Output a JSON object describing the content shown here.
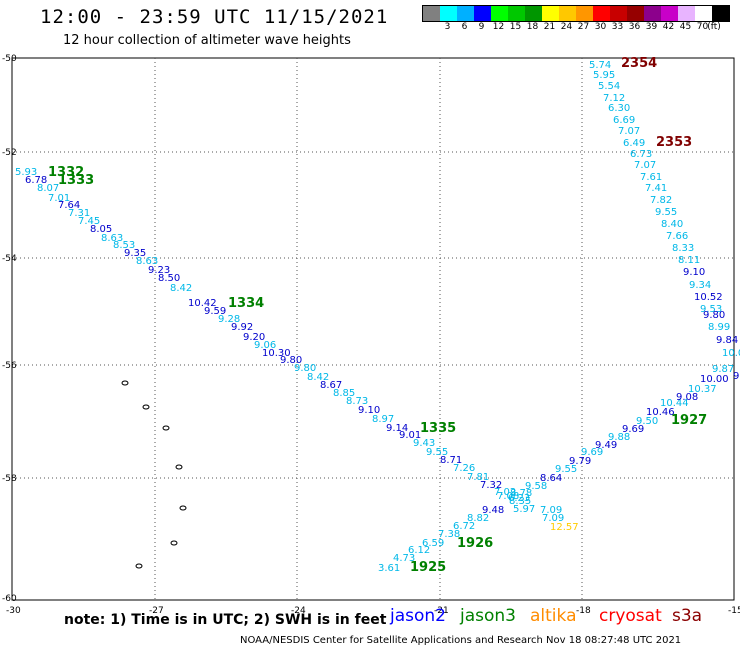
{
  "header": {
    "title": "12:00 - 23:59 UTC 11/15/2021",
    "subtitle": "12 hour collection of altimeter wave heights"
  },
  "color_scale": {
    "colors": [
      "#808080",
      "#00ffff",
      "#00b0ff",
      "#0000ff",
      "#00ff00",
      "#00c800",
      "#009600",
      "#ffff00",
      "#ffc800",
      "#ff9600",
      "#ff0000",
      "#c80000",
      "#960000",
      "#8c008c",
      "#c800c8",
      "#e8b4ff",
      "#ffffff",
      "#000000"
    ],
    "ticks": [
      "3",
      "6",
      "9",
      "12",
      "15",
      "18",
      "21",
      "24",
      "27",
      "30",
      "33",
      "36",
      "39",
      "42",
      "45",
      "70"
    ],
    "unit": "(ft)"
  },
  "axes": {
    "lat_labels": [
      "-50",
      "-52",
      "-54",
      "-56",
      "-58",
      "-60"
    ],
    "lon_labels": [
      "-30",
      "-27",
      "-24",
      "-21",
      "-18",
      "-15"
    ]
  },
  "tracks": {
    "cyan_desc": [
      "5.93",
      "6.78",
      "8.07",
      "7.01",
      "7.64",
      "7.31",
      "7.45",
      "8.05",
      "8.63",
      "8.53",
      "9.35",
      "8.63",
      "9.23",
      "8.50",
      "8.42",
      "10.42",
      "9.59",
      "9.28",
      "9.92",
      "9.20",
      "9.06",
      "10.30",
      "9.80",
      "9.80",
      "8.42",
      "8.67",
      "8.85",
      "8.73",
      "9.10",
      "8.97",
      "9.14",
      "9.01",
      "9.43",
      "9.55",
      "8.71",
      "7.26",
      "7.81",
      "7.32",
      "7.02",
      "6.23"
    ],
    "asc_upper": [
      "9.58",
      "8.64",
      "9.55",
      "9.79",
      "9.69",
      "9.49",
      "9.88",
      "9.69",
      "9.50",
      "10.46",
      "10.44",
      "9.08",
      "10.37",
      "10.00",
      "9.87",
      "9"
    ],
    "asc_lower": [
      "3.61",
      "4.73",
      "6.12",
      "6.59",
      "7.38",
      "6.72",
      "8.82",
      "9.48",
      "7.08",
      "8.78",
      "8.35",
      "5.97",
      "7.09",
      "7.09",
      "12.57"
    ],
    "east_track": [
      "5.74",
      "5.95",
      "5.54",
      "7.12",
      "6.30",
      "6.69",
      "7.07",
      "6.49",
      "6.73",
      "7.07",
      "7.61",
      "7.41",
      "7.82",
      "9.55",
      "8.40",
      "7.66",
      "8.33",
      "8.11",
      "9.10",
      "9.34",
      "10.52",
      "9.53",
      "9.80",
      "8.99",
      "9.84",
      "10.0"
    ]
  },
  "time_labels": [
    "1332",
    "1333",
    "1334",
    "1335",
    "2354",
    "2353",
    "1927",
    "1926",
    "1925"
  ],
  "footer": {
    "note": "note:  1) Time is in UTC;  2) SWH is in feet",
    "legend": [
      "jason2",
      "jason3",
      "altika",
      "cryosat",
      "s3a"
    ],
    "credit": "NOAA/NESDIS Center for Satellite Applications and Research     Nov 18 08:27:48 UTC 2021"
  },
  "palette": {
    "jason2": "#0000ff",
    "jason3": "#008000",
    "altika": "#ff8c00",
    "cryosat": "#ff0000",
    "s3a": "#8b0000"
  }
}
